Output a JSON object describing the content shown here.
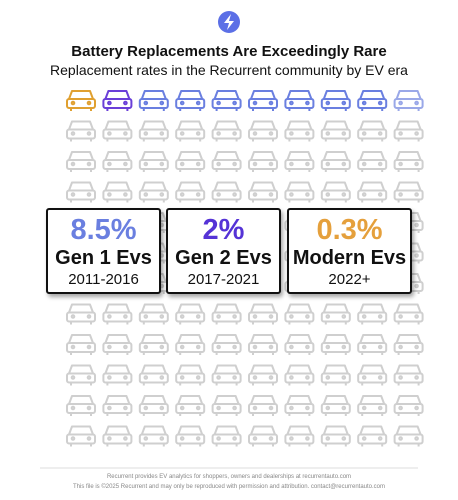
{
  "header": {
    "title": "Battery Replacements Are Exceedingly Rare",
    "subtitle": "Replacement rates in the Recurrent community by EV era"
  },
  "cards": [
    {
      "rate": "8.5%",
      "label": "Gen 1 Evs",
      "years": "2011-2016"
    },
    {
      "rate": "2%",
      "label": "Gen 2 Evs",
      "years": "2017-2021"
    },
    {
      "rate": "0.3%",
      "label": "Modern Evs",
      "years": "2022+"
    }
  ],
  "footer": {
    "line1": "Recurrent provides EV analytics for shoppers, owners and dealerships at recurrentauto.com",
    "line2": "This file is ©2025 Recurrent and may only be reproduced with permission and attribution. contact@recurrentauto.com"
  }
}
